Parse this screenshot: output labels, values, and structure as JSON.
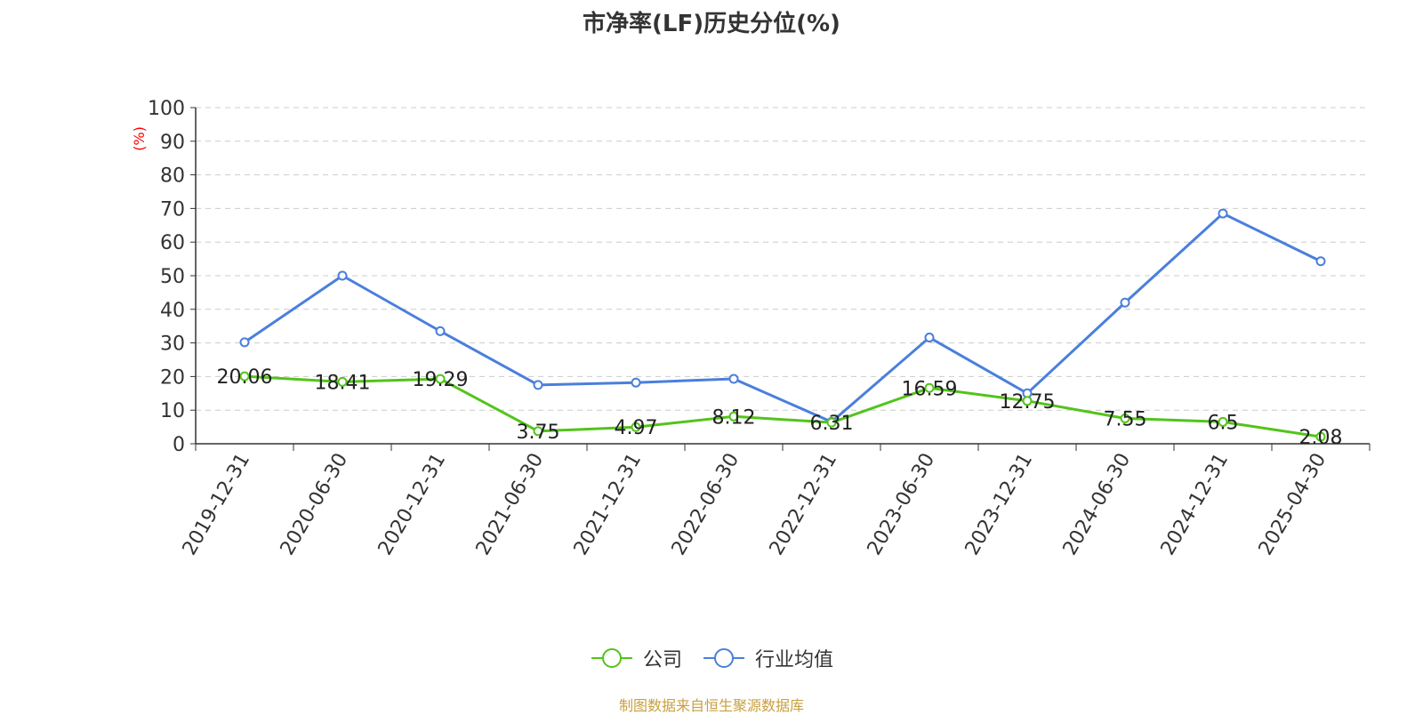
{
  "colors": {
    "company": "#52c41a",
    "industry": "#4a7fdc",
    "source": "#c8a040",
    "ylabel": "#ff0000"
  },
  "chart_data": {
    "type": "line",
    "title": "市净率(LF)历史分位(%)",
    "ylabel": "(%)",
    "ylim": [
      0,
      100
    ],
    "yticks": [
      0,
      10,
      20,
      30,
      40,
      50,
      60,
      70,
      80,
      90,
      100
    ],
    "categories": [
      "2019-12-31",
      "2020-06-30",
      "2020-12-31",
      "2021-06-30",
      "2021-12-31",
      "2022-06-30",
      "2022-12-31",
      "2023-06-30",
      "2023-12-31",
      "2024-06-30",
      "2024-12-31",
      "2025-04-30"
    ],
    "series": [
      {
        "name": "公司",
        "color": "#52c41a",
        "labeled": true,
        "values": [
          20.06,
          18.41,
          19.29,
          3.75,
          4.97,
          8.12,
          6.31,
          16.59,
          12.75,
          7.55,
          6.5,
          2.08
        ]
      },
      {
        "name": "行业均值",
        "color": "#4a7fdc",
        "labeled": false,
        "values": [
          30.2,
          50.0,
          33.5,
          17.5,
          18.2,
          19.3,
          6.5,
          31.6,
          15.0,
          42.0,
          68.5,
          54.3
        ]
      }
    ],
    "grid": true,
    "legend": "bottom-center"
  },
  "source_note": "制图数据来自恒生聚源数据库"
}
